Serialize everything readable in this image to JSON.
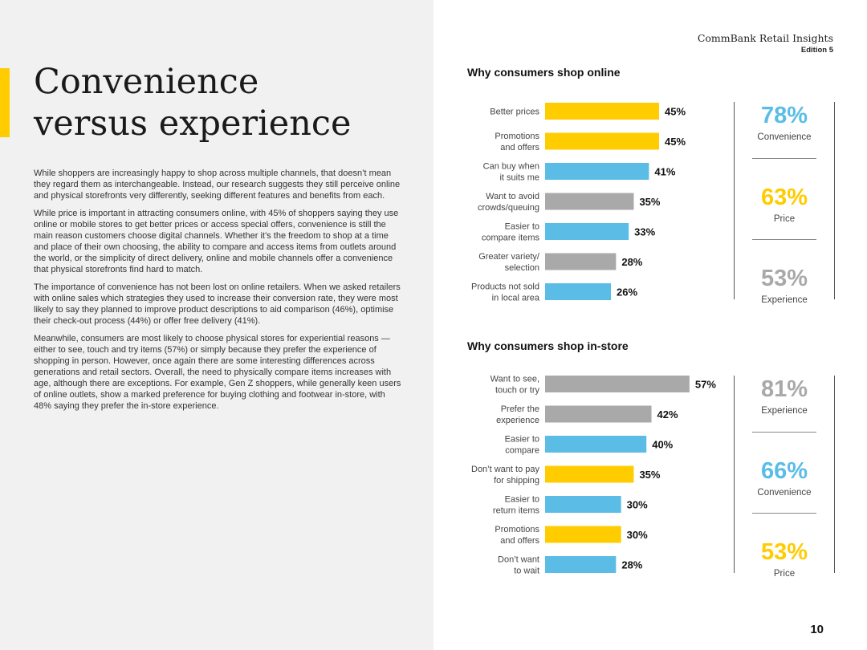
{
  "header": {
    "brand": "CommBank Retail Insights",
    "edition": "Edition 5"
  },
  "title": {
    "line1": "Convenience",
    "line2": "versus experience"
  },
  "body": {
    "paragraphs": [
      "While shoppers are increasingly happy to shop across multiple channels, that doesn’t mean they regard them as interchangeable. Instead, our research suggests they still perceive online and physical storefronts very differently, seeking different features and benefits from each.",
      "While price is important in attracting consumers online, with 45% of shoppers saying they use online or mobile stores to get better prices or access special offers, convenience is still the main reason customers choose digital channels. Whether it’s the freedom to shop at a time and place of their own choosing, the ability to compare and access items from outlets around the world, or the simplicity of direct delivery, online and mobile channels offer a convenience that physical storefronts find hard to match.",
      "The importance of convenience has not been lost on online retailers. When we asked retailers with online sales which strategies they used to increase their conversion rate, they were most likely to say they planned to improve product descriptions to aid comparison (46%), optimise their check-out process (44%) or offer free delivery (41%).",
      "Meanwhile, consumers are most likely to choose physical stores for experiential reasons — either to see, touch and try items (57%) or simply because they prefer the experience of shopping in person. However, once again there are some interesting differences across generations and retail sectors. Overall, the need to physically compare items increases with age, although there are exceptions. For example, Gen Z shoppers, while generally keen users of online outlets, show a marked preference for buying clothing and footwear in-store, with 48% saying they prefer the in-store experience."
    ]
  },
  "colors": {
    "yellow": "#ffcc00",
    "blue": "#5bbde6",
    "grey": "#a9a9a9"
  },
  "chart_data": [
    {
      "type": "bar",
      "orientation": "horizontal",
      "title": "Why consumers shop online",
      "unit": "%",
      "xlim": [
        0,
        60
      ],
      "categories": [
        [
          "Better prices"
        ],
        [
          "Promotions",
          "and offers"
        ],
        [
          "Can buy when",
          "it suits me"
        ],
        [
          "Want to avoid",
          "crowds/queuing"
        ],
        [
          "Easier to",
          "compare items"
        ],
        [
          "Greater variety/",
          "selection"
        ],
        [
          "Products not sold",
          "in local area"
        ]
      ],
      "values": [
        45,
        45,
        41,
        35,
        33,
        28,
        26
      ],
      "labels": [
        "45%",
        "45%",
        "41%",
        "35%",
        "33%",
        "28%",
        "26%"
      ],
      "bar_colors": [
        "#ffcc00",
        "#ffcc00",
        "#5bbde6",
        "#a9a9a9",
        "#5bbde6",
        "#a9a9a9",
        "#5bbde6"
      ],
      "summary": [
        {
          "value": "78%",
          "label": "Convenience",
          "color": "#5bbde6"
        },
        {
          "value": "63%",
          "label": "Price",
          "color": "#ffcc00"
        },
        {
          "value": "53%",
          "label": "Experience",
          "color": "#a9a9a9"
        }
      ]
    },
    {
      "type": "bar",
      "orientation": "horizontal",
      "title": "Why consumers shop in-store",
      "unit": "%",
      "xlim": [
        0,
        60
      ],
      "categories": [
        [
          "Want to see,",
          "touch or try"
        ],
        [
          "Prefer the",
          "experience"
        ],
        [
          "Easier to",
          "compare"
        ],
        [
          "Don’t want to pay",
          "for shipping"
        ],
        [
          "Easier to",
          "return items"
        ],
        [
          "Promotions",
          "and offers"
        ],
        [
          "Don’t want",
          "to wait"
        ]
      ],
      "values": [
        57,
        42,
        40,
        35,
        30,
        30,
        28
      ],
      "labels": [
        "57%",
        "42%",
        "40%",
        "35%",
        "30%",
        "30%",
        "28%"
      ],
      "bar_colors": [
        "#a9a9a9",
        "#a9a9a9",
        "#5bbde6",
        "#ffcc00",
        "#5bbde6",
        "#ffcc00",
        "#5bbde6"
      ],
      "summary": [
        {
          "value": "81%",
          "label": "Experience",
          "color": "#a9a9a9"
        },
        {
          "value": "66%",
          "label": "Convenience",
          "color": "#5bbde6"
        },
        {
          "value": "53%",
          "label": "Price",
          "color": "#ffcc00"
        }
      ]
    }
  ],
  "page_number": "10"
}
